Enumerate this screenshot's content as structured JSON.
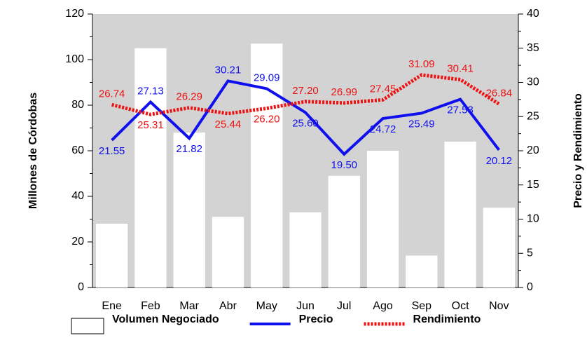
{
  "chart_data": {
    "type": "bar_line",
    "y_label": "Millones de Córdobas",
    "y2_label": "Precio y Rendimiento",
    "categories": [
      "Ene",
      "Feb",
      "Mar",
      "Abr",
      "May",
      "Jun",
      "Jul",
      "Ago",
      "Sep",
      "Oct",
      "Nov"
    ],
    "series": [
      {
        "name": "Volumen Negociado",
        "color": "#ffffff",
        "kind": "bar",
        "values": [
          28,
          105,
          68,
          31,
          107,
          33,
          49,
          60,
          14,
          64,
          35
        ]
      },
      {
        "name": "Precio",
        "color": "#1010ee",
        "kind": "line",
        "axis": "y2",
        "values": [
          21.55,
          27.13,
          21.82,
          30.21,
          29.09,
          25.6,
          19.5,
          24.72,
          25.49,
          27.53,
          20.12
        ],
        "value_labels": [
          "21.55",
          "27.13",
          "21.82",
          "30.21",
          "29.09",
          "25.60",
          "19.50",
          "24.72",
          "25.49",
          "27.53",
          "20.12"
        ]
      },
      {
        "name": "Rendimiento",
        "color": "#ee1111",
        "kind": "dotted",
        "axis": "y2",
        "values": [
          26.74,
          25.31,
          26.29,
          25.44,
          26.2,
          27.2,
          26.99,
          27.45,
          31.09,
          30.41,
          26.84
        ],
        "value_labels": [
          "26.74",
          "25.31",
          "26.29",
          "25.44",
          "26.20",
          "27.20",
          "26.99",
          "27.45",
          "31.09",
          "30.41",
          "26.84"
        ]
      }
    ],
    "ylim": [
      0,
      120
    ],
    "yticks": [
      0,
      20,
      40,
      60,
      80,
      100,
      120
    ],
    "y2lim": [
      0,
      40
    ],
    "y2ticks": [
      0,
      5,
      10,
      15,
      20,
      25,
      30,
      35,
      40
    ],
    "plot_background": "#d3d3d3"
  }
}
